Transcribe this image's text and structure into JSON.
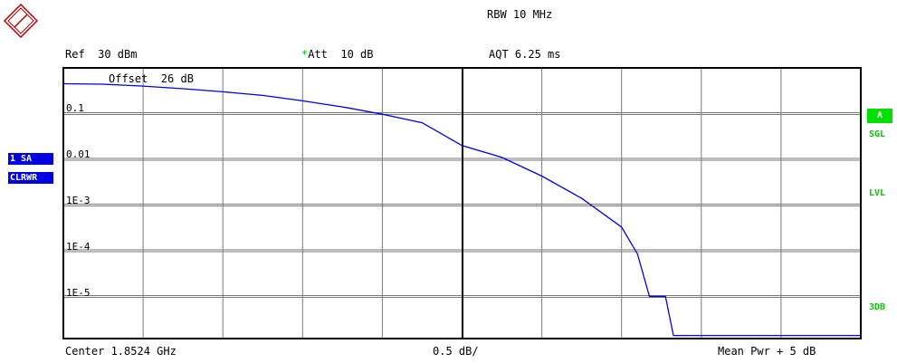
{
  "header": {
    "rbw": "RBW 10 MHz",
    "ref": "Ref  30 dBm",
    "att_star": "*",
    "att": "Att  10 dB",
    "aqt": "AQT 6.25 ms"
  },
  "footer": {
    "center": "Center 1.8524 GHz",
    "scale": "0.5 dB/",
    "mean_pwr": "Mean Pwr + 5 dB"
  },
  "side_left": {
    "trace_badge": "1 SA",
    "mode_badge": "CLRWR"
  },
  "side_right": {
    "a_badge": "A",
    "sgl": "SGL",
    "lvl": "LVL",
    "db3": "3DB"
  },
  "colors": {
    "trace": "#0000e0",
    "green_status": "#00c800",
    "logo": "#b00000"
  },
  "chart_data": {
    "type": "line",
    "title": "",
    "xlabel": "",
    "ylabel": "",
    "offset_annotation": "Offset  26 dB",
    "y_scale": "log",
    "ytick_labels": [
      "0.1",
      "0.01",
      "1E-3",
      "1E-4",
      "1E-5"
    ],
    "ytick_values": [
      0.1,
      0.01,
      0.001,
      0.0001,
      1e-05
    ],
    "ylim": [
      1.2e-06,
      1
    ],
    "xlim": [
      0,
      10
    ],
    "x_units": "dB",
    "grid": true,
    "series": [
      {
        "points": [
          [
            0.0,
            0.45
          ],
          [
            0.5,
            0.44
          ],
          [
            1.0,
            0.4
          ],
          [
            1.5,
            0.35
          ],
          [
            2.0,
            0.3
          ],
          [
            2.5,
            0.25
          ],
          [
            3.0,
            0.19
          ],
          [
            3.5,
            0.14
          ],
          [
            4.0,
            0.097
          ],
          [
            4.5,
            0.063
          ],
          [
            5.0,
            0.02
          ],
          [
            5.5,
            0.011
          ],
          [
            6.0,
            0.0043
          ],
          [
            6.5,
            0.0014
          ],
          [
            7.0,
            0.00033
          ],
          [
            7.2,
            8.5e-05
          ],
          [
            7.35,
            1e-05
          ],
          [
            7.55,
            1e-05
          ],
          [
            7.65,
            1.4e-06
          ],
          [
            10.0,
            1.4e-06
          ]
        ]
      }
    ]
  }
}
